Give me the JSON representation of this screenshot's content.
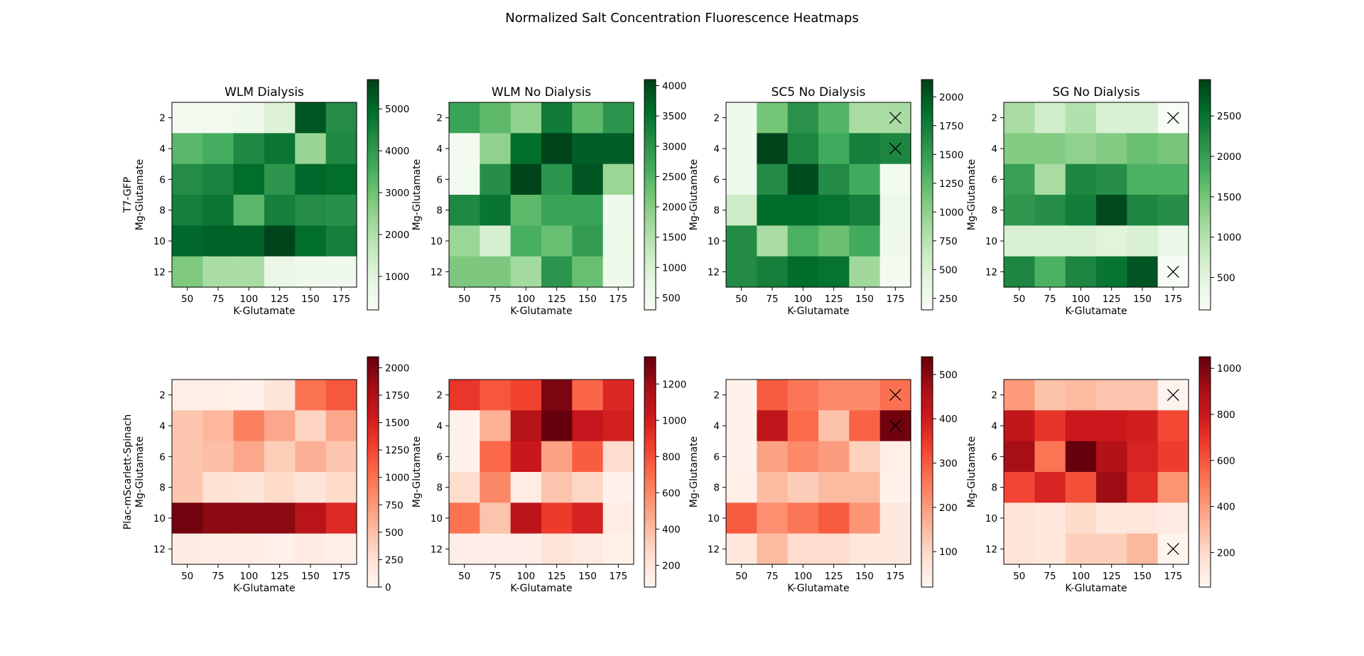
{
  "suptitle": "Normalized Salt Concentration Fluorescence Heatmaps",
  "colors": {
    "greens": [
      "#f7fcf5",
      "#e5f5e0",
      "#c7e9c0",
      "#a1d99b",
      "#74c476",
      "#41ab5d",
      "#238b45",
      "#006d2c",
      "#00441b"
    ],
    "reds": [
      "#fff5f0",
      "#fee0d2",
      "#fcbba1",
      "#fc9272",
      "#fb6a4a",
      "#ef3b2c",
      "#cb181d",
      "#a50f15",
      "#67000d"
    ]
  },
  "chart_data": [
    {
      "type": "heatmap",
      "title": "WLM Dialysis",
      "row_label": "T7-GFP",
      "xlabel": "K-Glutamate",
      "ylabel": "Mg-Glutamate",
      "x_categories": [
        "50",
        "75",
        "100",
        "125",
        "150",
        "175"
      ],
      "y_categories": [
        "2",
        "4",
        "6",
        "8",
        "10",
        "12"
      ],
      "colormap": "greens",
      "vmin": 200,
      "vmax": 5700,
      "colorbar_ticks": [
        1000,
        2000,
        3000,
        4000,
        5000
      ],
      "values": [
        [
          350,
          400,
          500,
          1100,
          5400,
          4300
        ],
        [
          3300,
          3600,
          4400,
          4800,
          2400,
          4400
        ],
        [
          4300,
          4500,
          5000,
          4100,
          5100,
          5000
        ],
        [
          4600,
          4800,
          3300,
          4600,
          4300,
          4200
        ],
        [
          5100,
          5200,
          5200,
          5700,
          5000,
          4600
        ],
        [
          2800,
          2100,
          2100,
          700,
          500,
          450
        ]
      ],
      "crossed_cells": []
    },
    {
      "type": "heatmap",
      "title": "WLM No Dialysis",
      "row_label": "",
      "xlabel": "K-Glutamate",
      "ylabel": "Mg-Glutamate",
      "x_categories": [
        "50",
        "75",
        "100",
        "125",
        "150",
        "175"
      ],
      "y_categories": [
        "2",
        "4",
        "6",
        "8",
        "10",
        "12"
      ],
      "colormap": "greens",
      "vmin": 300,
      "vmax": 4100,
      "colorbar_ticks": [
        500,
        1000,
        1500,
        2000,
        2500,
        3000,
        3500,
        4000
      ],
      "values": [
        [
          2800,
          2400,
          1900,
          3400,
          2400,
          3000
        ],
        [
          400,
          1900,
          3600,
          4100,
          3800,
          3800
        ],
        [
          450,
          3100,
          4100,
          3000,
          3900,
          1800
        ],
        [
          3200,
          3500,
          2400,
          2800,
          2800,
          500
        ],
        [
          1800,
          1000,
          2600,
          2300,
          2900,
          600
        ],
        [
          2100,
          2100,
          1700,
          3000,
          2300,
          500
        ]
      ],
      "crossed_cells": []
    },
    {
      "type": "heatmap",
      "title": "SC5 No Dialysis",
      "row_label": "",
      "xlabel": "K-Glutamate",
      "ylabel": "Mg-Glutamate",
      "x_categories": [
        "50",
        "75",
        "100",
        "125",
        "150",
        "175"
      ],
      "y_categories": [
        "2",
        "4",
        "6",
        "8",
        "10",
        "12"
      ],
      "colormap": "greens",
      "vmin": 150,
      "vmax": 2150,
      "colorbar_ticks": [
        250,
        500,
        750,
        1000,
        1250,
        1500,
        1750,
        2000
      ],
      "values": [
        [
          250,
          1150,
          1600,
          1300,
          850,
          850
        ],
        [
          250,
          2150,
          1700,
          1400,
          1750,
          1700
        ],
        [
          250,
          1650,
          2100,
          1650,
          1400,
          200
        ],
        [
          600,
          1900,
          1900,
          1850,
          1750,
          300
        ],
        [
          1650,
          850,
          1350,
          1200,
          1400,
          250
        ],
        [
          1650,
          1750,
          1900,
          1850,
          900,
          200
        ]
      ],
      "crossed_cells": [
        [
          0,
          5
        ],
        [
          1,
          5
        ]
      ]
    },
    {
      "type": "heatmap",
      "title": "SG No Dialysis",
      "row_label": "",
      "xlabel": "K-Glutamate",
      "ylabel": "Mg-Glutamate",
      "x_categories": [
        "50",
        "75",
        "100",
        "125",
        "150",
        "175"
      ],
      "y_categories": [
        "2",
        "4",
        "6",
        "8",
        "10",
        "12"
      ],
      "colormap": "greens",
      "vmin": 100,
      "vmax": 2950,
      "colorbar_ticks": [
        500,
        1000,
        1500,
        2000,
        2500
      ],
      "values": [
        [
          1100,
          700,
          1000,
          600,
          600,
          100
        ],
        [
          1400,
          1400,
          1300,
          1400,
          1600,
          1500
        ],
        [
          2000,
          1100,
          2300,
          2200,
          1800,
          1800
        ],
        [
          2100,
          2200,
          2400,
          2900,
          2300,
          2200
        ],
        [
          600,
          600,
          600,
          500,
          600,
          350
        ],
        [
          2300,
          1800,
          2300,
          2500,
          2800,
          100
        ]
      ],
      "crossed_cells": [
        [
          0,
          5
        ],
        [
          5,
          5
        ]
      ]
    },
    {
      "type": "heatmap",
      "title": "",
      "row_label": "Plac-mScarlett-Spinach",
      "xlabel": "K-Glutamate",
      "ylabel": "Mg-Glutamate",
      "x_categories": [
        "50",
        "75",
        "100",
        "125",
        "150",
        "175"
      ],
      "y_categories": [
        "2",
        "4",
        "6",
        "8",
        "10",
        "12"
      ],
      "colormap": "reds",
      "vmin": 0,
      "vmax": 2100,
      "colorbar_ticks": [
        0,
        250,
        500,
        750,
        1000,
        1250,
        1500,
        1750,
        2000
      ],
      "values": [
        [
          80,
          80,
          50,
          200,
          1000,
          1150
        ],
        [
          450,
          550,
          900,
          650,
          350,
          650
        ],
        [
          450,
          500,
          650,
          400,
          600,
          450
        ],
        [
          450,
          250,
          200,
          300,
          200,
          300
        ],
        [
          2050,
          1950,
          1950,
          1950,
          1700,
          1450
        ],
        [
          120,
          100,
          100,
          60,
          120,
          80
        ]
      ],
      "crossed_cells": []
    },
    {
      "type": "heatmap",
      "title": "",
      "row_label": "",
      "xlabel": "K-Glutamate",
      "ylabel": "Mg-Glutamate",
      "x_categories": [
        "50",
        "75",
        "100",
        "125",
        "150",
        "175"
      ],
      "y_categories": [
        "2",
        "4",
        "6",
        "8",
        "10",
        "12"
      ],
      "colormap": "reds",
      "vmin": 80,
      "vmax": 1350,
      "colorbar_ticks": [
        200,
        400,
        600,
        800,
        1000,
        1200
      ],
      "values": [
        [
          900,
          780,
          850,
          1300,
          730,
          960
        ],
        [
          100,
          440,
          1120,
          1350,
          1060,
          1000
        ],
        [
          100,
          720,
          1040,
          500,
          760,
          250
        ],
        [
          250,
          600,
          150,
          360,
          280,
          100
        ],
        [
          680,
          360,
          1100,
          880,
          990,
          150
        ],
        [
          130,
          130,
          130,
          210,
          160,
          120
        ]
      ],
      "crossed_cells": []
    },
    {
      "type": "heatmap",
      "title": "",
      "row_label": "",
      "xlabel": "K-Glutamate",
      "ylabel": "Mg-Glutamate",
      "x_categories": [
        "50",
        "75",
        "100",
        "125",
        "150",
        "175"
      ],
      "y_categories": [
        "2",
        "4",
        "6",
        "8",
        "10",
        "12"
      ],
      "colormap": "reds",
      "vmin": 20,
      "vmax": 540,
      "colorbar_ticks": [
        100,
        200,
        300,
        400,
        500
      ],
      "values": [
        [
          30,
          300,
          260,
          230,
          230,
          270
        ],
        [
          30,
          430,
          280,
          140,
          290,
          530
        ],
        [
          30,
          190,
          230,
          200,
          110,
          40
        ],
        [
          40,
          150,
          120,
          150,
          150,
          30
        ],
        [
          300,
          220,
          260,
          300,
          210,
          60
        ],
        [
          60,
          150,
          90,
          90,
          60,
          60
        ]
      ],
      "crossed_cells": [
        [
          0,
          5
        ],
        [
          1,
          5
        ]
      ]
    },
    {
      "type": "heatmap",
      "title": "",
      "row_label": "",
      "xlabel": "K-Glutamate",
      "ylabel": "Mg-Glutamate",
      "x_categories": [
        "50",
        "75",
        "100",
        "125",
        "150",
        "175"
      ],
      "y_categories": [
        "2",
        "4",
        "6",
        "8",
        "10",
        "12"
      ],
      "colormap": "reds",
      "vmin": 50,
      "vmax": 1050,
      "colorbar_ticks": [
        200,
        400,
        600,
        800,
        1000
      ],
      "values": [
        [
          400,
          280,
          300,
          270,
          270,
          60
        ],
        [
          830,
          700,
          800,
          800,
          780,
          640
        ],
        [
          920,
          520,
          1050,
          880,
          760,
          670
        ],
        [
          650,
          760,
          620,
          940,
          720,
          420
        ],
        [
          150,
          130,
          190,
          130,
          130,
          110
        ],
        [
          150,
          130,
          230,
          230,
          310,
          60
        ]
      ],
      "crossed_cells": [
        [
          0,
          5
        ],
        [
          5,
          5
        ]
      ]
    }
  ]
}
